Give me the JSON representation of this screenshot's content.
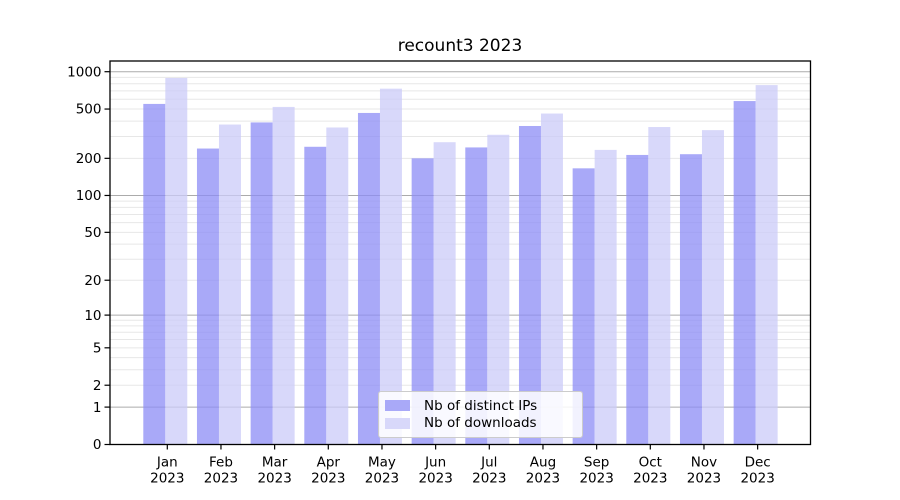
{
  "figure": {
    "background": "#ffffff"
  },
  "chart_data": {
    "type": "bar",
    "title": "recount3 2023",
    "categories": [
      "Jan",
      "Feb",
      "Mar",
      "Apr",
      "May",
      "Jun",
      "Jul",
      "Aug",
      "Sep",
      "Oct",
      "Nov",
      "Dec"
    ],
    "category_year": "2023",
    "series": [
      {
        "name": "Nb of distinct IPs",
        "color": "#a9a9f8",
        "fill": "rgba(140,140,246,0.75)",
        "values": [
          550,
          240,
          390,
          248,
          465,
          200,
          245,
          365,
          166,
          213,
          216,
          580
        ]
      },
      {
        "name": "Nb of downloads",
        "color": "#d8d8fa",
        "fill": "rgba(203,203,248,0.75)",
        "values": [
          890,
          375,
          520,
          355,
          730,
          270,
          310,
          460,
          234,
          358,
          338,
          780
        ]
      }
    ],
    "xlabel": "",
    "ylabel": "",
    "yscale": "log1p",
    "yticks": [
      0,
      1,
      2,
      5,
      10,
      20,
      50,
      100,
      200,
      500,
      1000
    ],
    "ylim": [
      0,
      1220
    ],
    "grid": true,
    "grid_major_color": "#ababab",
    "grid_minor_color": "#e7e7e7",
    "legend_position": "lower center"
  }
}
